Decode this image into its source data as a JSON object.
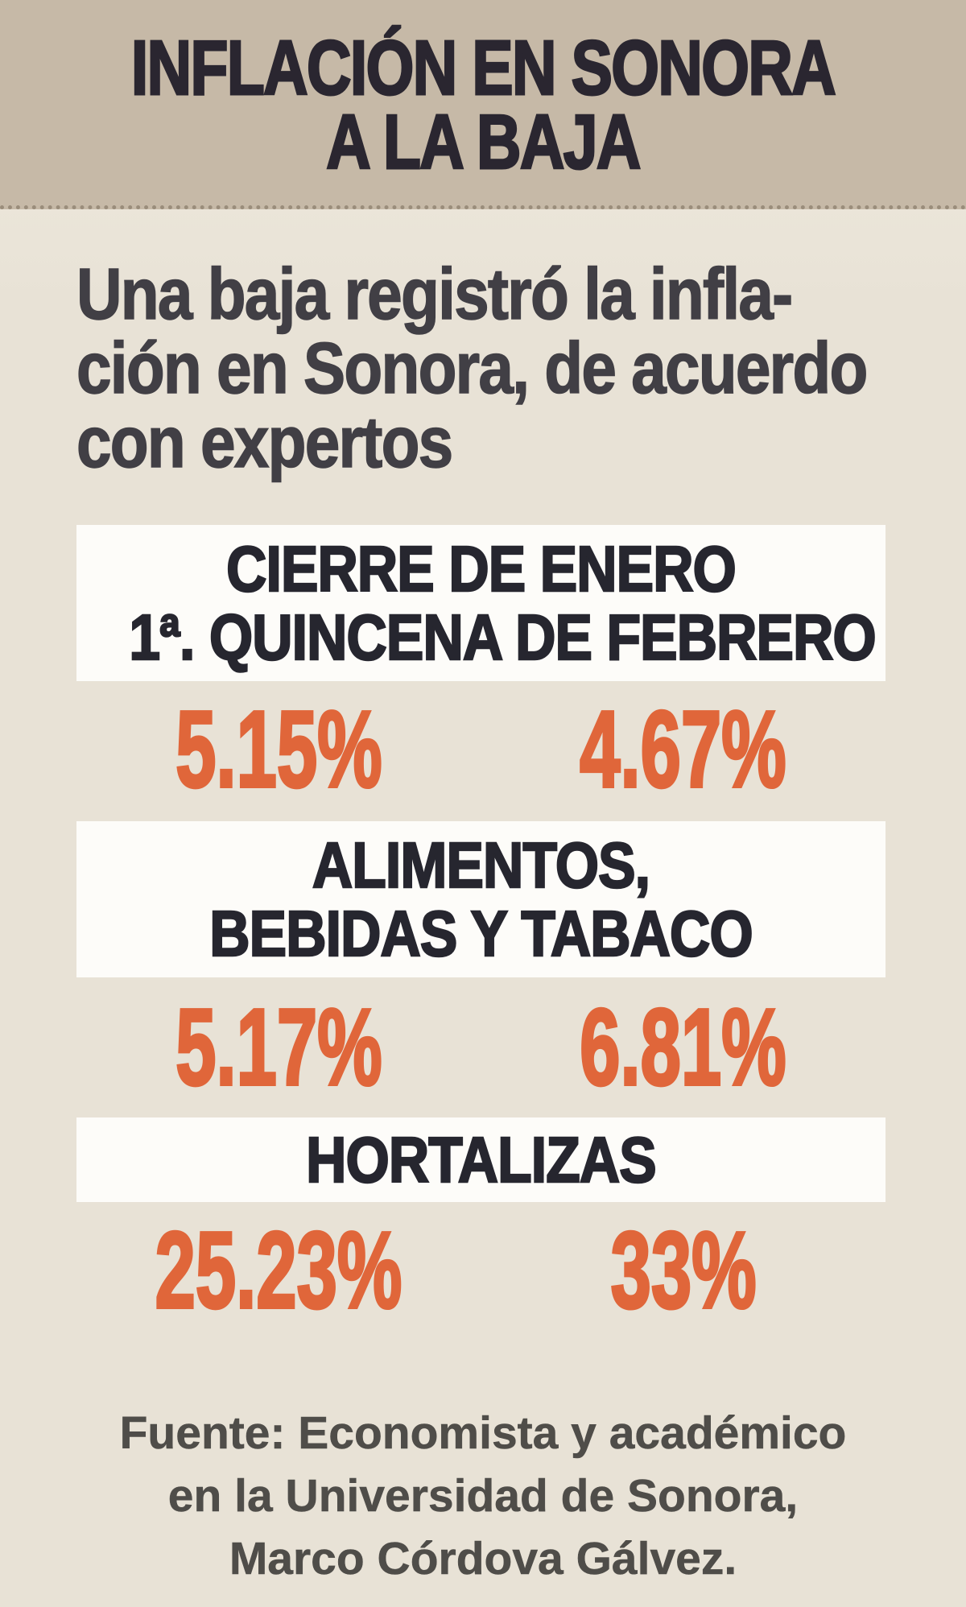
{
  "header": {
    "title_line1": "INFLACIÓN EN SONORA",
    "title_line2": "A LA BAJA"
  },
  "intro": {
    "line1": "Una baja registró la infla-",
    "line2": "ción en Sonora, de acuerdo",
    "line3": "con expertos"
  },
  "sections": [
    {
      "heading_line1": "CIERRE DE ENERO",
      "heading_line2": "1ª. QUINCENA DE FEBRERO",
      "value_left": "5.15%",
      "value_right": "4.67%"
    },
    {
      "heading_line1": "ALIMENTOS,",
      "heading_line2": "BEBIDAS Y TABACO",
      "value_left": "5.17%",
      "value_right": "6.81%"
    },
    {
      "heading_line1": "HORTALIZAS",
      "value_left": "25.23%",
      "value_right": "33%"
    }
  ],
  "footer": {
    "line1": "Fuente: Economista y académico",
    "line2": "en la Universidad de Sonora,",
    "line3": "Marco Córdova Gálvez."
  },
  "colors": {
    "header_bg": "#c6b9a7",
    "body_bg": "#e8e2d6",
    "card_bg": "#fdfcf9",
    "accent_orange": "#e0663a",
    "title_text": "#2a2630",
    "heading_text": "#26262f",
    "intro_text": "#413f45",
    "source_text": "#4f4d49"
  },
  "chart_data": {
    "type": "table",
    "title": "INFLACIÓN EN SONORA A LA BAJA",
    "subtitle": "Una baja registró la inflación en Sonora, de acuerdo con expertos",
    "columns": [
      "Cierre de enero",
      "1ª. quincena de febrero"
    ],
    "rows": [
      {
        "label": "Cierre de enero / 1ª. quincena de febrero (inflación)",
        "values": [
          5.15,
          4.67
        ]
      },
      {
        "label": "Alimentos, bebidas y tabaco",
        "values": [
          5.17,
          6.81
        ]
      },
      {
        "label": "Hortalizas",
        "values": [
          25.23,
          33
        ]
      }
    ],
    "unit": "%",
    "legend_position": "none",
    "grid": false,
    "source": "Fuente: Economista y académico en la Universidad de Sonora, Marco Córdova Gálvez."
  }
}
